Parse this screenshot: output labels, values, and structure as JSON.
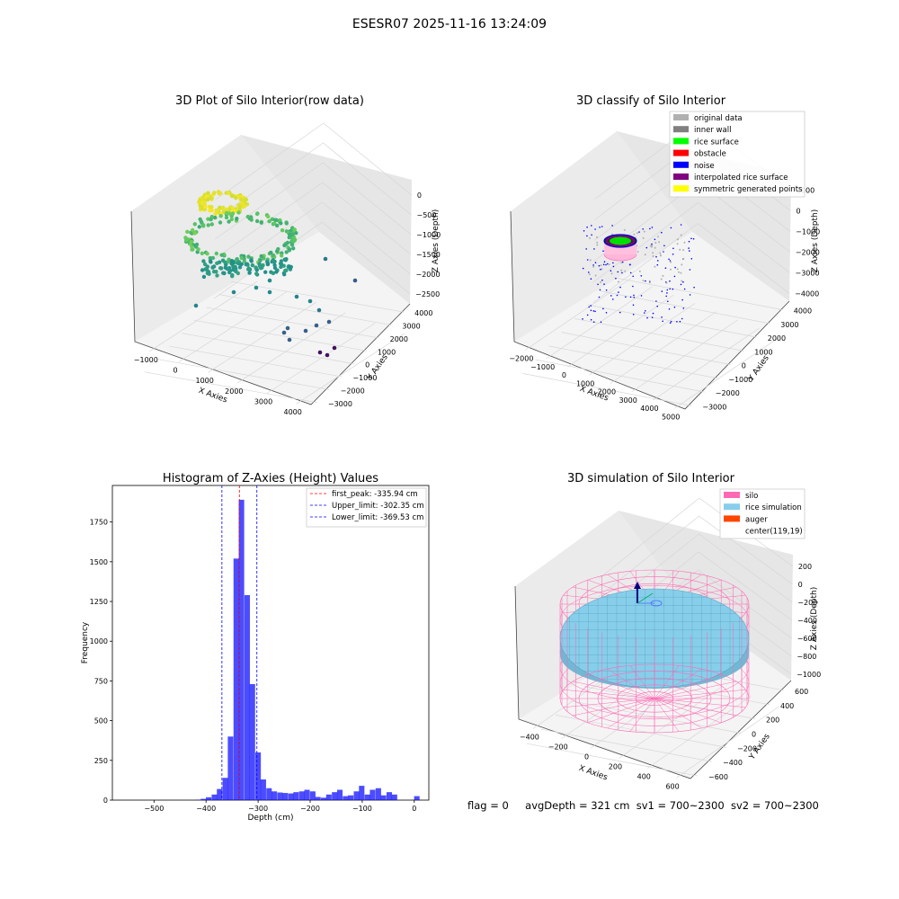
{
  "page_title": "ESESR07 2025-11-16 13:24:09",
  "footer": {
    "flag": "flag = 0",
    "avg_depth": "avgDepth = 321 cm",
    "sv1": "sv1 = 700~2300",
    "sv2": "sv2 = 700~2300"
  },
  "colors": {
    "histogram_bar": "#0000ff",
    "peak_line": "#ff0000",
    "limit_line": "#0000ff",
    "silo_wire": "#ff69b4",
    "rice_surface": "#87ceeb",
    "auger": "#ff4500",
    "noise": "#0000ff",
    "rice_surface_class": "#00ff00",
    "pane": "#f2f2f2",
    "grid": "#d9d9d9"
  },
  "chart_data": [
    {
      "id": "raw",
      "type": "scatter",
      "title": "3D Plot of Silo Interior(row data)",
      "xlabel": "X Axies",
      "ylabel": "Y Axies",
      "zlabel": "Z Axies (Depth)",
      "x_ticks": [
        "−1000",
        "0",
        "1000",
        "2000",
        "3000",
        "4000"
      ],
      "y_ticks": [
        "−3000",
        "−2000",
        "−1000",
        "0",
        "1000",
        "2000",
        "3000",
        "4000"
      ],
      "z_ticks": [
        "0",
        "−500",
        "−1000",
        "−1500",
        "−2000",
        "−2500"
      ],
      "colormap": "viridis (color by depth)"
    },
    {
      "id": "classify",
      "type": "scatter",
      "title": "3D classify of Silo Interior",
      "xlabel": "X Axies",
      "ylabel": "Y Axies",
      "zlabel": "Z Axies (Depth)",
      "x_ticks": [
        "−2000",
        "−1000",
        "0",
        "1000",
        "2000",
        "3000",
        "4000",
        "5000"
      ],
      "y_ticks": [
        "−3000",
        "−2000",
        "−1000",
        "0",
        "1000",
        "2000",
        "3000",
        "4000"
      ],
      "z_ticks": [
        "1000",
        "0",
        "−1000",
        "−2000",
        "−3000",
        "−4000"
      ],
      "legend": [
        {
          "label": "original data",
          "color": "#b0b0b0"
        },
        {
          "label": "inner wall",
          "color": "#808080"
        },
        {
          "label": "rice surface",
          "color": "#00ff00"
        },
        {
          "label": "obstacle",
          "color": "#ff0000"
        },
        {
          "label": "noise",
          "color": "#0000ff"
        },
        {
          "label": "interpolated rice surface",
          "color": "#800080"
        },
        {
          "label": "symmetric generated points",
          "color": "#ffff00"
        }
      ],
      "legend_placement": "top-right",
      "z_tick_partial": "1000"
    },
    {
      "id": "hist",
      "type": "bar",
      "title": "Histogram of Z-Axies (Height) Values",
      "xlabel": "Depth (cm)",
      "ylabel": "Frequency",
      "xlim": [
        -580,
        28
      ],
      "ylim": [
        0,
        1980
      ],
      "x_ticks": [
        -500,
        -400,
        -300,
        -200,
        -100,
        0
      ],
      "x_tick_labels": [
        "−500",
        "−400",
        "−300",
        "−200",
        "−100",
        "0"
      ],
      "y_ticks": [
        0,
        250,
        500,
        750,
        1000,
        1250,
        1500,
        1750
      ],
      "y_tick_labels": [
        "0",
        "250",
        "500",
        "750",
        "1000",
        "1250",
        "1500",
        "1750"
      ],
      "bin_width": 10.5,
      "bin_centers": [
        -415,
        -405,
        -395,
        -384,
        -374,
        -363,
        -353,
        -342,
        -332,
        -321,
        -311,
        -300,
        -290,
        -279,
        -269,
        -258,
        -248,
        -237,
        -227,
        -216,
        -206,
        -195,
        -185,
        -174,
        -164,
        -153,
        -143,
        -132,
        -122,
        -111,
        -101,
        -90,
        -80,
        -69,
        -59,
        -48,
        -38,
        -27,
        -17,
        -6,
        5
      ],
      "values": [
        3,
        8,
        18,
        35,
        70,
        140,
        400,
        1520,
        1890,
        1290,
        730,
        300,
        130,
        75,
        55,
        48,
        45,
        42,
        50,
        55,
        65,
        55,
        20,
        15,
        35,
        50,
        65,
        25,
        30,
        55,
        90,
        35,
        65,
        75,
        30,
        50,
        35,
        0,
        0,
        0,
        25
      ],
      "lines": [
        {
          "label": "first_peak: -335.94 cm",
          "value": -335.94,
          "color": "#ff0000"
        },
        {
          "label": "Upper_limit: -302.35 cm",
          "value": -302.35,
          "color": "#0000ff"
        },
        {
          "label": "Lower_limit: -369.53 cm",
          "value": -369.53,
          "color": "#0000ff"
        }
      ],
      "legend_placement": "top-right"
    },
    {
      "id": "sim",
      "type": "surface",
      "title": "3D simulation of Silo Interior",
      "xlabel": "X Axies",
      "ylabel": "Y Axies",
      "zlabel": "Z Axies (Depth)",
      "x_ticks": [
        "−400",
        "−200",
        "0",
        "200",
        "400",
        "600"
      ],
      "y_ticks": [
        "−600",
        "−400",
        "−200",
        "0",
        "200",
        "400",
        "600"
      ],
      "z_ticks": [
        "200",
        "0",
        "−200",
        "−400",
        "−600",
        "−800",
        "−1000"
      ],
      "legend": [
        {
          "label": "silo",
          "color": "#ff69b4"
        },
        {
          "label": "rice simulation",
          "color": "#87ceeb"
        },
        {
          "label": "auger",
          "color": "#ff4500"
        },
        {
          "label": "center(119,19)",
          "color": ""
        }
      ],
      "legend_placement": "top-right"
    }
  ]
}
